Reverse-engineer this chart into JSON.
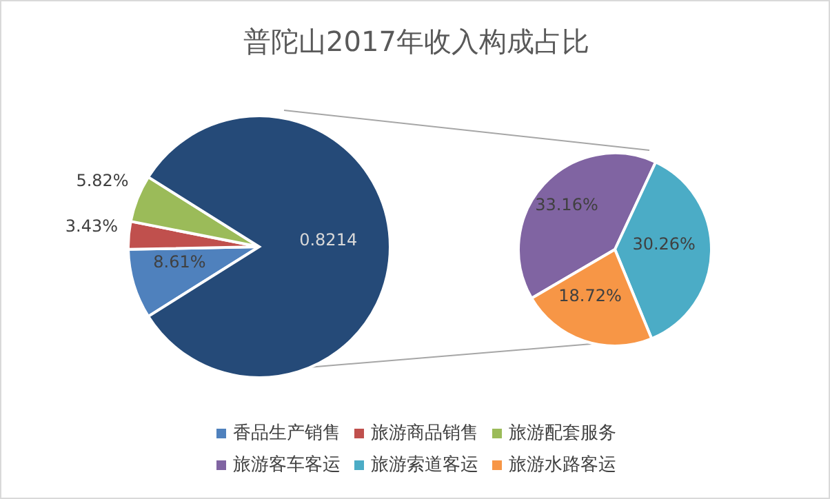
{
  "chart_data": [
    {
      "type": "pie",
      "title": "普陀山2017年收入构成占比",
      "categories": [
        "香品生产销售",
        "旅游商品销售",
        "旅游配套服务",
        null
      ],
      "values": [
        0.0861,
        0.0343,
        0.0582,
        0.8214
      ],
      "value_labels": [
        "8.61%",
        "3.43%",
        "5.82%",
        "0.8214"
      ],
      "colors": [
        "#4f81bd",
        "#c0504d",
        "#9bbb59",
        "#254a78"
      ],
      "legend": "bottom"
    },
    {
      "type": "pie",
      "categories": [
        "旅游客车客运",
        "旅游索道客运",
        "旅游水路客运"
      ],
      "values": [
        33.16,
        30.26,
        18.72
      ],
      "value_labels": [
        "33.16%",
        "30.26%",
        "18.72%"
      ],
      "colors": [
        "#8064a2",
        "#4bacc6",
        "#f79646"
      ],
      "legend": "bottom"
    }
  ]
}
